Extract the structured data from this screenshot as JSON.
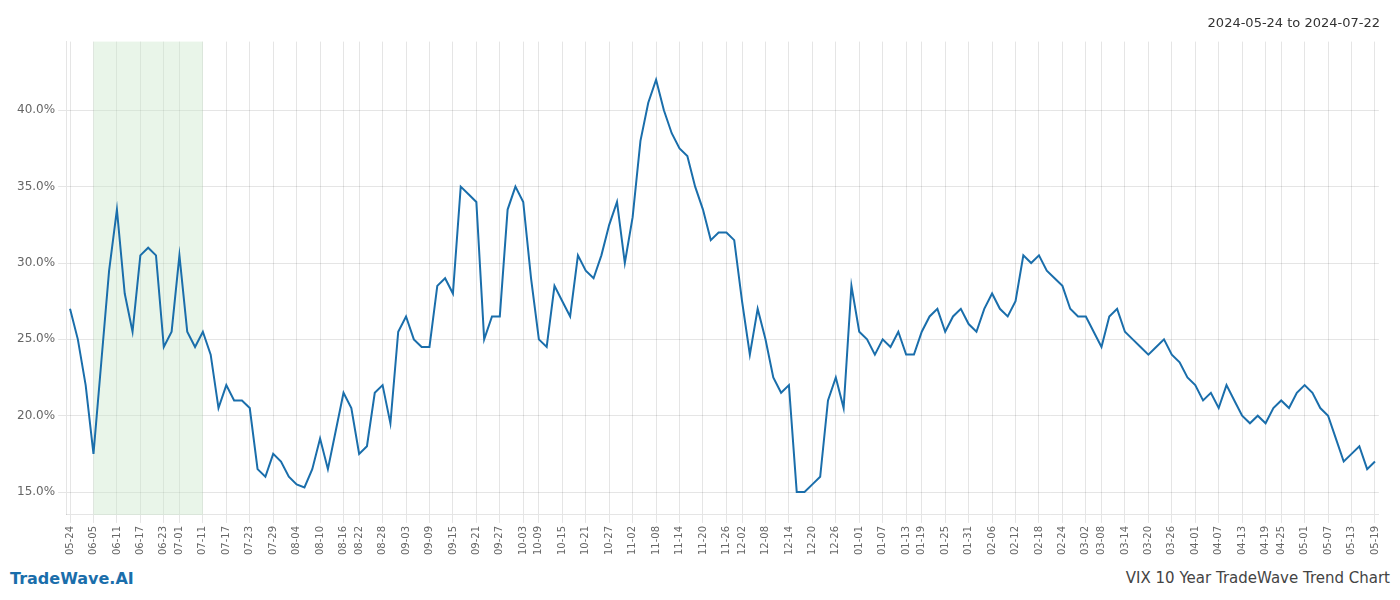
{
  "chart_data": {
    "type": "line",
    "title": "2024-05-24 to 2024-07-22",
    "annotations": [
      "TradeWave.AI",
      "VIX 10 Year TradeWave Trend Chart"
    ],
    "categories": [
      "05-24",
      null,
      null,
      "06-05",
      null,
      null,
      "06-11",
      null,
      null,
      "06-17",
      null,
      null,
      "06-23",
      null,
      "07-01",
      null,
      null,
      "07-11",
      null,
      null,
      "07-17",
      null,
      null,
      "07-23",
      null,
      null,
      "07-29",
      null,
      null,
      "08-04",
      null,
      null,
      "08-10",
      null,
      null,
      "08-16",
      null,
      "08-22",
      null,
      null,
      "08-28",
      null,
      null,
      "09-03",
      null,
      null,
      "09-09",
      null,
      null,
      "09-15",
      null,
      null,
      "09-21",
      null,
      null,
      "09-27",
      null,
      null,
      "10-03",
      null,
      "10-09",
      null,
      null,
      "10-15",
      null,
      null,
      "10-21",
      null,
      null,
      "10-27",
      null,
      null,
      "11-02",
      null,
      null,
      "11-08",
      null,
      null,
      "11-14",
      null,
      null,
      "11-20",
      null,
      null,
      "11-26",
      null,
      "12-02",
      null,
      null,
      "12-08",
      null,
      null,
      "12-14",
      null,
      null,
      "12-20",
      null,
      null,
      "12-26",
      null,
      null,
      "01-01",
      null,
      null,
      "01-07",
      null,
      null,
      "01-13",
      null,
      "01-19",
      null,
      null,
      "01-25",
      null,
      null,
      "01-31",
      null,
      null,
      "02-06",
      null,
      null,
      "02-12",
      null,
      null,
      "02-18",
      null,
      null,
      "02-24",
      null,
      null,
      "03-02",
      null,
      "03-08",
      null,
      null,
      "03-14",
      null,
      null,
      "03-20",
      null,
      null,
      "03-26",
      null,
      null,
      "04-01",
      null,
      null,
      "04-07",
      null,
      null,
      "04-13",
      null,
      null,
      "04-19",
      null,
      "04-25",
      null,
      null,
      "05-01",
      null,
      null,
      "05-07",
      null,
      null,
      "05-13",
      null,
      null,
      "05-19"
    ],
    "values": [
      27.0,
      25.0,
      22.0,
      17.5,
      23.5,
      29.5,
      33.5,
      28.0,
      25.5,
      30.5,
      31.0,
      30.5,
      24.5,
      25.5,
      30.5,
      25.5,
      24.5,
      25.5,
      24.0,
      20.5,
      22.0,
      21.0,
      21.0,
      20.5,
      16.5,
      16.0,
      17.5,
      17.0,
      16.0,
      15.5,
      15.3,
      16.5,
      18.5,
      16.5,
      19.0,
      21.5,
      20.5,
      17.5,
      18.0,
      21.5,
      22.0,
      19.5,
      25.5,
      26.5,
      25.0,
      24.5,
      24.5,
      28.5,
      29.0,
      28.0,
      35.0,
      34.5,
      34.0,
      25.0,
      26.5,
      26.5,
      33.5,
      35.0,
      34.0,
      29.0,
      25.0,
      24.5,
      28.5,
      27.5,
      26.5,
      30.5,
      29.5,
      29.0,
      30.5,
      32.5,
      34.0,
      30.0,
      33.0,
      38.0,
      40.5,
      42.0,
      40.0,
      38.5,
      37.5,
      37.0,
      35.0,
      33.5,
      31.5,
      32.0,
      32.0,
      31.5,
      27.5,
      24.0,
      27.0,
      25.0,
      22.5,
      21.5,
      22.0,
      15.0,
      15.0,
      15.5,
      16.0,
      21.0,
      22.5,
      20.5,
      28.5,
      25.5,
      25.0,
      24.0,
      25.0,
      24.5,
      25.5,
      24.0,
      24.0,
      25.5,
      26.5,
      27.0,
      25.5,
      26.5,
      27.0,
      26.0,
      25.5,
      27.0,
      28.0,
      27.0,
      26.5,
      27.5,
      30.5,
      30.0,
      30.5,
      29.5,
      29.0,
      28.5,
      27.0,
      26.5,
      26.5,
      25.5,
      24.5,
      26.5,
      27.0,
      25.5,
      25.0,
      24.5,
      24.0,
      24.5,
      25.0,
      24.0,
      23.5,
      22.5,
      22.0,
      21.0,
      21.5,
      20.5,
      22.0,
      21.0,
      20.0,
      19.5,
      20.0,
      19.5,
      20.5,
      21.0,
      20.5,
      21.5,
      22.0,
      21.5,
      20.5,
      20.0,
      18.5,
      17.0,
      17.5,
      18.0,
      16.5,
      17.0
    ],
    "color": "#1a6eab",
    "highlight": {
      "start": "06-05",
      "end": "07-11",
      "color": "#c8e6c9"
    },
    "ylim": [
      13.5,
      44.5
    ],
    "yticks": [
      {
        "value": 15.0,
        "label": "15.0%"
      },
      {
        "value": 20.0,
        "label": "20.0%"
      },
      {
        "value": 25.0,
        "label": "25.0%"
      },
      {
        "value": 30.0,
        "label": "30.0%"
      },
      {
        "value": 35.0,
        "label": "35.0%"
      },
      {
        "value": 40.0,
        "label": "40.0%"
      }
    ],
    "grid": true
  }
}
